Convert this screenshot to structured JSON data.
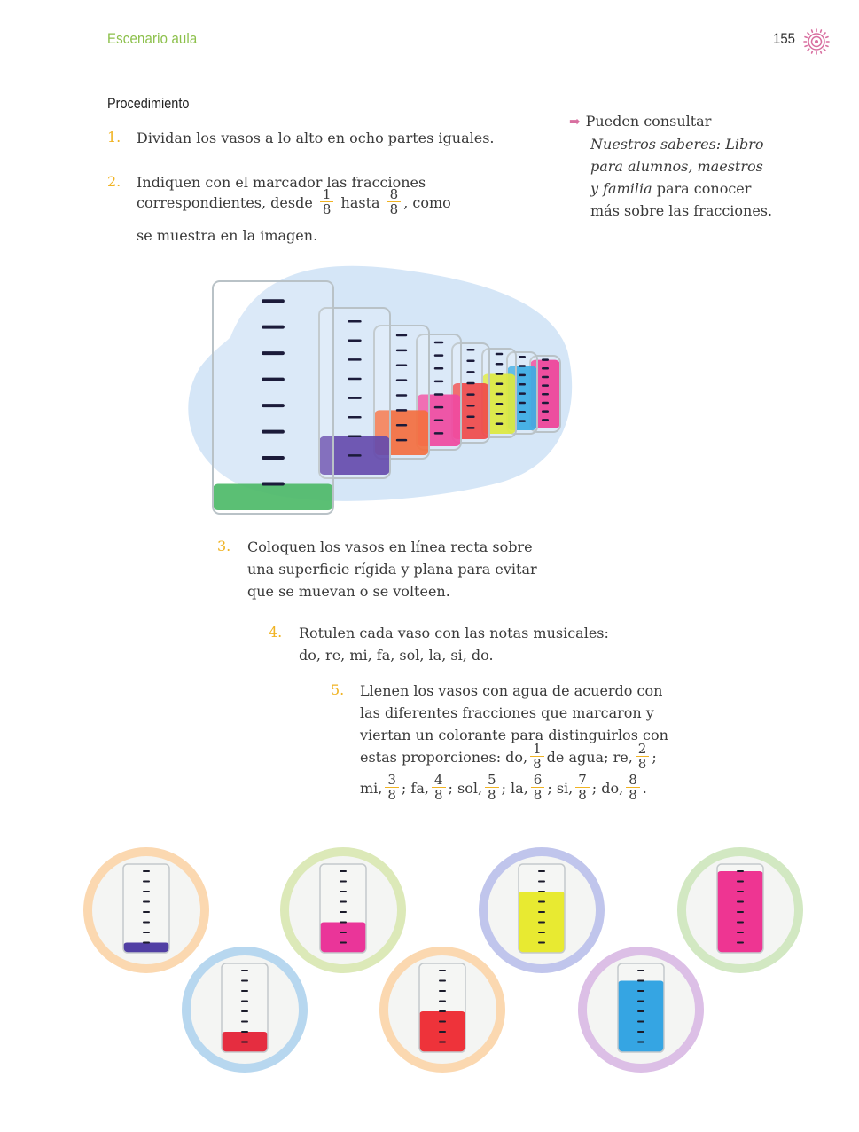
{
  "header": {
    "section_title": "Escenario aula",
    "page_number": "155"
  },
  "procedure": {
    "heading": "Procedimiento",
    "steps": [
      {
        "num": "1.",
        "text": "Dividan los vasos a lo alto en ocho partes iguales."
      },
      {
        "num": "2.",
        "line1": "Indiquen con el marcador las fracciones",
        "line2a": "correspondientes, desde",
        "frac1": {
          "n": "1",
          "d": "8"
        },
        "line2b": "hasta",
        "frac2": {
          "n": "8",
          "d": "8"
        },
        "line2c": ", como",
        "line3": "se muestra en la imagen."
      },
      {
        "num": "3.",
        "lines": [
          "Coloquen los vasos en línea recta sobre",
          "una superficie rígida y plana para evitar",
          "que se muevan o se volteen."
        ]
      },
      {
        "num": "4.",
        "lines": [
          "Rotulen cada vaso con las notas musicales:",
          "do, re, mi, fa, sol, la, si, do."
        ]
      },
      {
        "num": "5.",
        "lines": [
          "Llenen los vasos con agua de acuerdo con",
          "las diferentes fracciones que marcaron y",
          "viertan un colorante para distinguirlos con"
        ],
        "line4a": "estas proporciones: do,",
        "line4b": "de agua; re,",
        "line4c": ";",
        "fracs": [
          {
            "n": "1",
            "d": "8"
          },
          {
            "n": "2",
            "d": "8"
          },
          {
            "n": "3",
            "d": "8"
          },
          {
            "n": "4",
            "d": "8"
          },
          {
            "n": "5",
            "d": "8"
          },
          {
            "n": "6",
            "d": "8"
          },
          {
            "n": "7",
            "d": "8"
          },
          {
            "n": "8",
            "d": "8"
          }
        ],
        "line5": [
          "mi,",
          "; fa,",
          "; sol,",
          "; la,",
          "; si,",
          "; do,",
          "."
        ]
      }
    ]
  },
  "sidebar": {
    "line1": "Pueden consultar",
    "italic": "Nuestros saberes: Libro para alumnos, maestros y familia",
    "rest": "para conocer más sobre las fracciones.",
    "italic_l1": "Nuestros saberes: Libro",
    "italic_l2": "para alumnos, maestros",
    "italic_l3": "y familia",
    "rest_l3": "para conocer",
    "rest_l4": "más sobre las fracciones."
  },
  "colors": {
    "accent_green": "#8cc04b",
    "number_yellow": "#f0b323",
    "arrow_pink": "#d86fa0"
  },
  "glasses_photo": {
    "liquid_colors": [
      "#2fae4e",
      "#4b2d9e",
      "#f2561d",
      "#ee2a8f",
      "#ee2a2a",
      "#d7e61c",
      "#1a9ee0",
      "#ec1f86"
    ],
    "fill_fractions": [
      0.125,
      0.25,
      0.375,
      0.5,
      0.625,
      0.75,
      0.875,
      1.0
    ]
  },
  "circle_photos": [
    {
      "ring": "#fbd8b0",
      "liquid": "#3e2a9a",
      "fill": 0.125
    },
    {
      "ring": "#b7d7ef",
      "liquid": "#e3162b",
      "fill": 0.25
    },
    {
      "ring": "#dce9b8",
      "liquid": "#e81f8e",
      "fill": 0.375
    },
    {
      "ring": "#fbd8b0",
      "liquid": "#ec1c24",
      "fill": 0.5
    },
    {
      "ring": "#c0c5ec",
      "liquid": "#e6e81a",
      "fill": 0.75
    },
    {
      "ring": "#dcbfe6",
      "liquid": "#1f9be0",
      "fill": 0.875
    },
    {
      "ring": "#d2e8c2",
      "liquid": "#ec1f86",
      "fill": 1.0
    }
  ]
}
